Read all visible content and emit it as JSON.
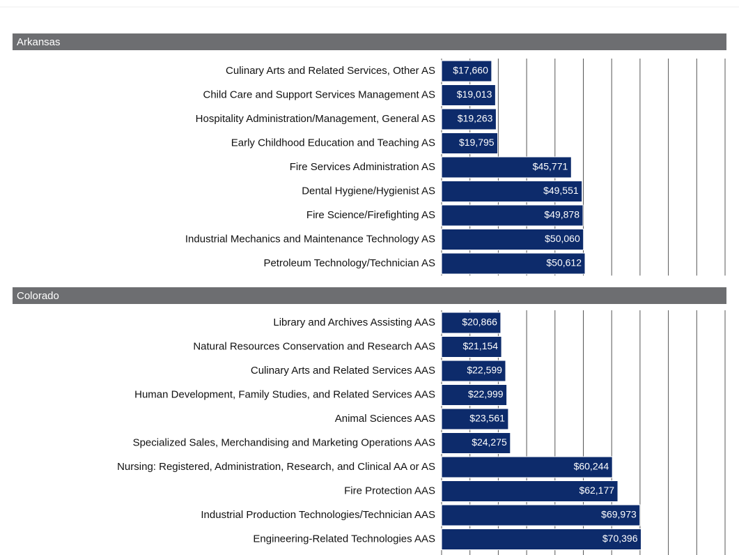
{
  "chart_data": [
    {
      "type": "bar",
      "orientation": "horizontal",
      "title": "Arkansas",
      "categories": [
        "Culinary Arts and Related Services, Other AS",
        "Child Care and Support Services Management AS",
        "Hospitality Administration/Management, General AS",
        "Early Childhood Education and Teaching AS",
        "Fire Services Administration AS",
        "Dental Hygiene/Hygienist AS",
        "Fire Science/Firefighting AS",
        "Industrial Mechanics and Maintenance Technology AS",
        "Petroleum Technology/Technician AS"
      ],
      "values": [
        17660,
        19013,
        19263,
        19795,
        45771,
        49551,
        49878,
        50060,
        50612
      ],
      "value_labels": [
        "$17,660",
        "$19,013",
        "$19,263",
        "$19,795",
        "$45,771",
        "$49,551",
        "$49,878",
        "$50,060",
        "$50,612"
      ],
      "color": "#0d2b6b",
      "xlim": [
        0,
        100000
      ],
      "xticks": [
        0,
        10000,
        20000,
        30000,
        40000,
        50000,
        60000,
        70000,
        80000,
        90000,
        100000
      ],
      "grid": true
    },
    {
      "type": "bar",
      "orientation": "horizontal",
      "title": "Colorado",
      "categories": [
        "Library and Archives Assisting AAS",
        "Natural Resources Conservation and Research AAS",
        "Culinary Arts and Related Services AAS",
        "Human Development, Family Studies, and Related Services AAS",
        "Animal Sciences AAS",
        "Specialized Sales, Merchandising and Marketing Operations AAS",
        "Nursing: Registered, Administration, Research, and Clinical AA or AS",
        "Fire Protection AAS",
        "Industrial Production Technologies/Technician AAS",
        "Engineering-Related Technologies AAS"
      ],
      "values": [
        20866,
        21154,
        22599,
        22999,
        23561,
        24275,
        60244,
        62177,
        69973,
        70396
      ],
      "value_labels": [
        "$20,866",
        "$21,154",
        "$22,599",
        "$22,999",
        "$23,561",
        "$24,275",
        "$60,244",
        "$62,177",
        "$69,973",
        "$70,396"
      ],
      "color": "#0d2b6b",
      "xlim": [
        0,
        100000
      ],
      "xticks": [
        0,
        10000,
        20000,
        30000,
        40000,
        50000,
        60000,
        70000,
        80000,
        90000,
        100000
      ],
      "grid": true
    }
  ]
}
